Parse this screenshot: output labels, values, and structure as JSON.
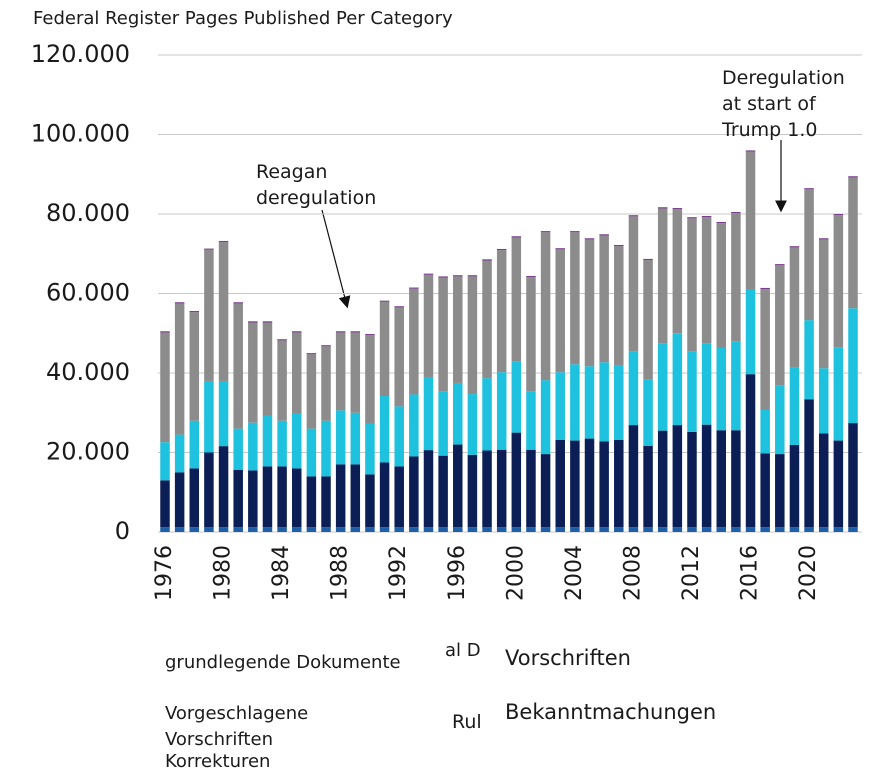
{
  "chart_data": {
    "type": "bar",
    "stacked": true,
    "title": "Federal Register Pages Published Per Category",
    "categories": [
      "1976",
      null,
      null,
      null,
      "1980",
      null,
      null,
      null,
      "1984",
      null,
      null,
      null,
      "1988",
      null,
      null,
      null,
      "1992",
      null,
      null,
      null,
      "1996",
      null,
      null,
      null,
      "2000",
      null,
      null,
      null,
      "2004",
      null,
      null,
      null,
      "2008",
      null,
      null,
      null,
      "2012",
      null,
      null,
      null,
      "2016",
      null,
      null,
      null,
      "2020",
      null,
      null,
      null
    ],
    "series": [
      {
        "name": "grundlegende Dokumente",
        "color": "#1f5fa8",
        "values": [
          1200,
          1200,
          1200,
          1200,
          1200,
          1200,
          1200,
          1200,
          1200,
          1200,
          1200,
          1200,
          1200,
          1200,
          1200,
          1200,
          1200,
          1200,
          1200,
          1200,
          1200,
          1200,
          1200,
          1200,
          1200,
          1200,
          1200,
          1200,
          1200,
          1200,
          1200,
          1200,
          1200,
          1200,
          1200,
          1200,
          1200,
          1200,
          1200,
          1200,
          1200,
          1200,
          1200,
          1200,
          1200,
          1200,
          1200,
          1200
        ]
      },
      {
        "name": "Vorschriften",
        "color": "#0b1f56",
        "values": [
          11800,
          13800,
          14800,
          18800,
          20400,
          14400,
          14300,
          15300,
          15300,
          14800,
          12800,
          12800,
          15800,
          15800,
          13300,
          16300,
          15300,
          17800,
          19400,
          18000,
          20800,
          18200,
          19300,
          19500,
          23800,
          19500,
          18400,
          22000,
          21800,
          22300,
          21600,
          22000,
          25700,
          20500,
          24300,
          25700,
          24000,
          25800,
          24400,
          24400,
          38500,
          18600,
          18400,
          20700,
          32200,
          23600,
          21800,
          26200
        ]
      },
      {
        "name": "Vorgeschlagene Vorschriften",
        "color": "#1ec1de",
        "values": [
          9600,
          9500,
          12000,
          18000,
          16400,
          10400,
          12000,
          12800,
          11500,
          13800,
          12000,
          14000,
          13600,
          13000,
          12800,
          16700,
          15100,
          15600,
          18400,
          16200,
          15500,
          15300,
          18200,
          19500,
          18000,
          14700,
          18600,
          17000,
          19200,
          18200,
          19900,
          18600,
          18600,
          16600,
          22000,
          23100,
          20300,
          20500,
          20700,
          22400,
          21200,
          10900,
          17200,
          19400,
          19900,
          16400,
          23500,
          28900
        ]
      },
      {
        "name": "Bekanntmachungen",
        "color": "#8c8c8c",
        "values": [
          27600,
          33000,
          27300,
          33000,
          34900,
          31500,
          25200,
          23400,
          20200,
          20400,
          18700,
          18700,
          19600,
          20200,
          22200,
          23700,
          24900,
          26600,
          25700,
          28600,
          26800,
          29600,
          29600,
          30700,
          31100,
          28700,
          37200,
          30900,
          33200,
          31900,
          31900,
          30100,
          33900,
          30100,
          33900,
          31200,
          33400,
          31700,
          31400,
          32200,
          34800,
          30400,
          30300,
          30300,
          32900,
          32400,
          33200,
          32900
        ]
      },
      {
        "name": "Korrekturen",
        "color": "#7a3e8c",
        "values": [
          300,
          300,
          300,
          300,
          300,
          300,
          300,
          300,
          300,
          300,
          300,
          300,
          300,
          300,
          300,
          300,
          300,
          300,
          300,
          300,
          300,
          300,
          300,
          300,
          300,
          300,
          300,
          300,
          300,
          300,
          300,
          300,
          300,
          300,
          300,
          300,
          300,
          300,
          300,
          300,
          300,
          300,
          300,
          300,
          300,
          300,
          300,
          300
        ]
      }
    ],
    "ylim": [
      0,
      120000
    ],
    "yticks": [
      0,
      {
        "value": 20000,
        "label": "20.000"
      },
      {
        "value": 40000,
        "label": "40.000"
      },
      {
        "value": 60000,
        "label": "60.000"
      },
      {
        "value": 80000,
        "label": "80.000"
      },
      {
        "value": 100000,
        "label": "100.000"
      },
      {
        "value": 120000,
        "label": "120.000"
      }
    ],
    "grid": true,
    "annotations": [
      "Reagan deregulation",
      "Deregulation at start of Trump 1.0"
    ],
    "legend_fragments": [
      "al D",
      "Rul"
    ]
  }
}
